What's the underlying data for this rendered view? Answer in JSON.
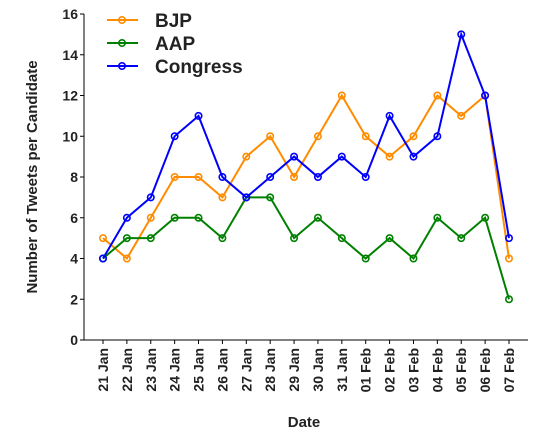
{
  "chart_data": {
    "type": "line",
    "title": "",
    "xlabel": "Date",
    "ylabel": "Number of Tweets per Candidate",
    "categories": [
      "21 Jan",
      "22 Jan",
      "23 Jan",
      "24 Jan",
      "25 Jan",
      "26 Jan",
      "27 Jan",
      "28 Jan",
      "29 Jan",
      "30 Jan",
      "31 Jan",
      "01 Feb",
      "02 Feb",
      "03 Feb",
      "04 Feb",
      "05 Feb",
      "06 Feb",
      "07 Feb"
    ],
    "ylim": [
      0,
      16
    ],
    "yticks": [
      "0",
      "2",
      "4",
      "6",
      "8",
      "10",
      "12",
      "14",
      "16"
    ],
    "grid": false,
    "legend_position": "top-left",
    "series": [
      {
        "name": "BJP",
        "color": "#ff8c00",
        "values": [
          5,
          4,
          6,
          8,
          8,
          7,
          9,
          10,
          8,
          10,
          12,
          10,
          9,
          10,
          12,
          11,
          12,
          4
        ]
      },
      {
        "name": "AAP",
        "color": "#008000",
        "values": [
          4,
          5,
          5,
          6,
          6,
          5,
          7,
          7,
          5,
          6,
          5,
          4,
          5,
          4,
          6,
          5,
          6,
          2
        ]
      },
      {
        "name": "Congress",
        "color": "#0000ff",
        "values": [
          4,
          6,
          7,
          10,
          11,
          8,
          7,
          8,
          9,
          8,
          9,
          8,
          11,
          9,
          10,
          15,
          12,
          5
        ]
      }
    ]
  }
}
